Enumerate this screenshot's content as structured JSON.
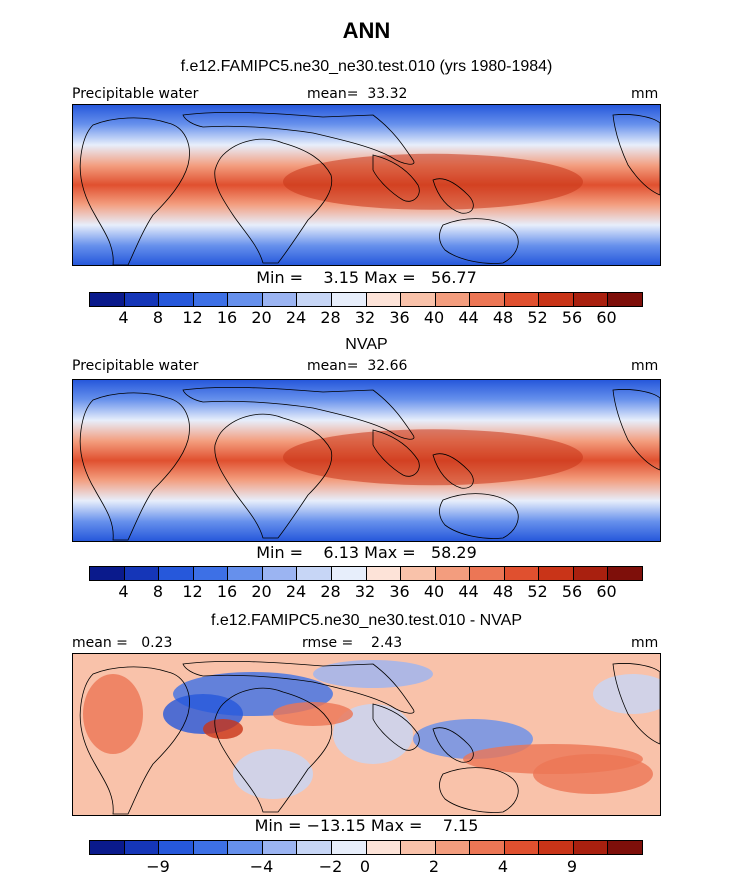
{
  "main_title": "ANN",
  "colors": {
    "full": [
      "#0a1a8c",
      "#1536b8",
      "#2658db",
      "#3d70e6",
      "#6690ec",
      "#9bb4f2",
      "#c7d6f6",
      "#e7eefb",
      "#fde3d8",
      "#f9c2aa",
      "#f39d7e",
      "#ec7655",
      "#e0502f",
      "#c93418",
      "#a9200f",
      "#7e0f0a"
    ],
    "diff": [
      "#0a1a8c",
      "#1536b8",
      "#2658db",
      "#3d70e6",
      "#6690ec",
      "#9bb4f2",
      "#c7d6f6",
      "#e7eefb",
      "#fde3d8",
      "#f9c2aa",
      "#f39d7e",
      "#ec7655",
      "#e0502f",
      "#c93418",
      "#a9200f",
      "#7e0f0a"
    ]
  },
  "panels": [
    {
      "id": "model",
      "title": "f.e12.FAMIPC5.ne30_ne30.test.010 (yrs 1980-1984)",
      "left_label": "Precipitable water",
      "center_label": "mean=  33.32",
      "units": "mm",
      "stats": "Min =    3.15 Max =   56.77",
      "ticks": [
        "4",
        "8",
        "12",
        "16",
        "20",
        "24",
        "28",
        "32",
        "36",
        "40",
        "44",
        "48",
        "52",
        "56",
        "60"
      ]
    },
    {
      "id": "obs",
      "title": "NVAP",
      "left_label": "Precipitable water",
      "center_label": "mean=  32.66",
      "units": "mm",
      "stats": "Min =    6.13 Max =   58.29",
      "ticks": [
        "4",
        "8",
        "12",
        "16",
        "20",
        "24",
        "28",
        "32",
        "36",
        "40",
        "44",
        "48",
        "52",
        "56",
        "60"
      ]
    },
    {
      "id": "diff",
      "title": "f.e12.FAMIPC5.ne30_ne30.test.010 - NVAP",
      "left_label": "mean =   0.23",
      "center_label": "rmse =    2.43",
      "units": "mm",
      "stats": "Min = −13.15 Max =    7.15",
      "ticks": [
        "−9",
        "−4",
        "−2",
        "0",
        "2",
        "4",
        "9"
      ]
    }
  ]
}
